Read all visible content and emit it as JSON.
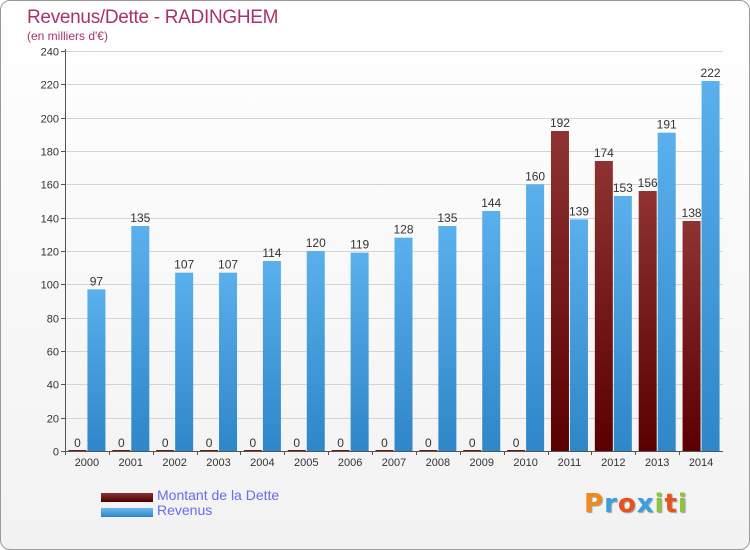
{
  "header": {
    "title": "Revenus/Dette - RADINGHEM",
    "subtitle": "(en milliers d'€)"
  },
  "chart_data": {
    "type": "bar",
    "categories": [
      "2000",
      "2001",
      "2002",
      "2003",
      "2004",
      "2005",
      "2006",
      "2007",
      "2008",
      "2009",
      "2010",
      "2011",
      "2012",
      "2013",
      "2014"
    ],
    "series": [
      {
        "name": "Montant de la Dette",
        "values": [
          0,
          0,
          0,
          0,
          0,
          0,
          0,
          0,
          0,
          0,
          0,
          192,
          174,
          156,
          138
        ],
        "color": "#7a1a1a"
      },
      {
        "name": "Revenus",
        "values": [
          97,
          135,
          107,
          107,
          114,
          120,
          119,
          128,
          135,
          144,
          160,
          139,
          153,
          191,
          222
        ],
        "color": "#4ca3e0"
      }
    ],
    "y_ticks": [
      "0",
      "20",
      "40",
      "60",
      "80",
      "100",
      "120",
      "140",
      "160",
      "180",
      "200",
      "220",
      "240"
    ],
    "ylim": [
      0,
      240
    ],
    "grid": true,
    "legend_position": "bottom-left"
  },
  "legend": {
    "items": [
      {
        "label": "Montant de la Dette",
        "color": "#7a1a1a"
      },
      {
        "label": "Revenus",
        "color": "#4ca3e0"
      }
    ]
  },
  "logo": {
    "text": "Proxiti"
  }
}
